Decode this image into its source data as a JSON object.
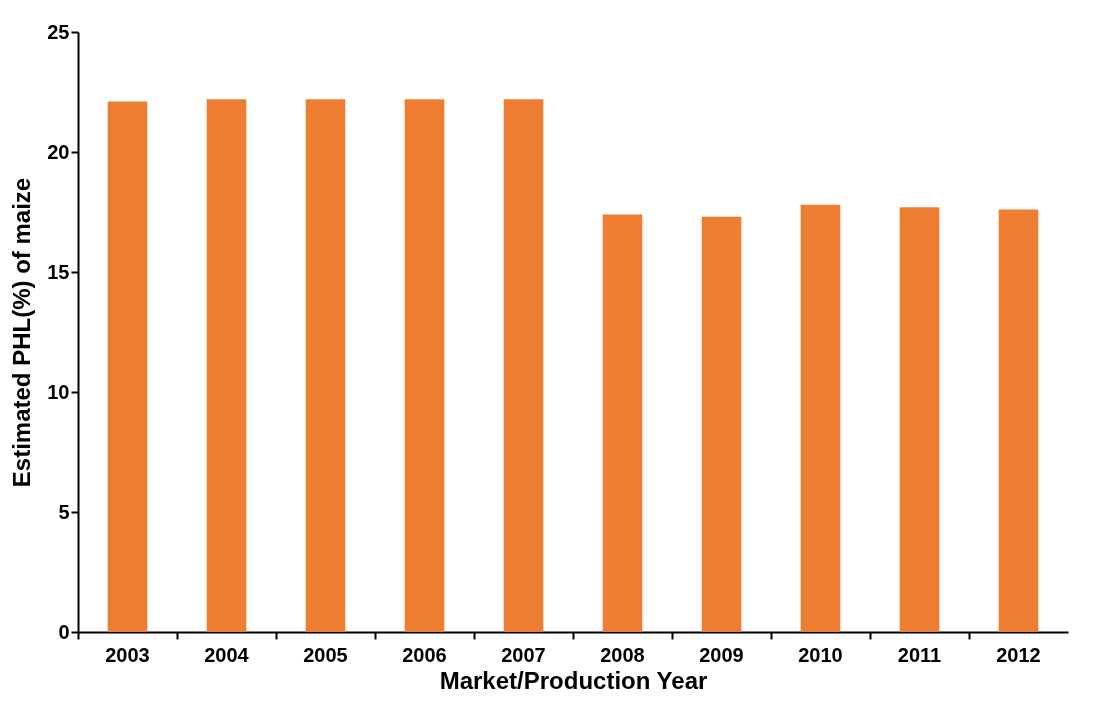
{
  "chart_data": {
    "type": "bar",
    "xlabel": "Market/Production Year",
    "ylabel": "Estimated PHL(%) of maize",
    "categories": [
      "2003",
      "2004",
      "2005",
      "2006",
      "2007",
      "2008",
      "2009",
      "2010",
      "2011",
      "2012"
    ],
    "values": [
      22.1,
      22.2,
      22.2,
      22.2,
      22.2,
      17.4,
      17.3,
      17.8,
      17.7,
      17.6
    ],
    "color": "#ed7d31",
    "ylim": [
      0,
      25
    ],
    "yticks": [
      0,
      5,
      10,
      15,
      20,
      25
    ],
    "grid": false
  }
}
